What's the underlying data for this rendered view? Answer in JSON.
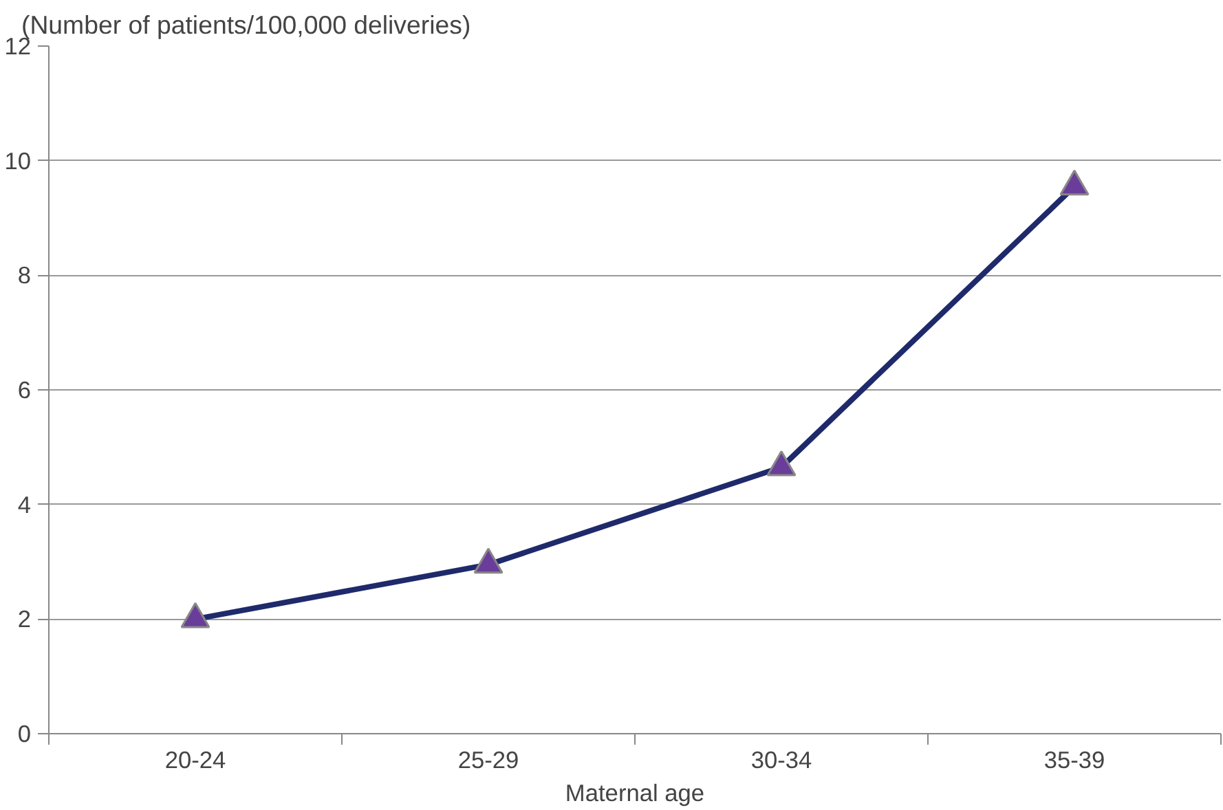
{
  "chart_data": {
    "type": "line",
    "xlabel": "Maternal age",
    "ylabel": "(Number of patients/100,000 deliveries)",
    "categories": [
      "20-24",
      "25-29",
      "30-34",
      "35-39"
    ],
    "series": [
      {
        "color": "#1f2a6b",
        "values": [
          2.0,
          2.95,
          4.65,
          9.55
        ]
      }
    ],
    "ylim": [
      0,
      12
    ],
    "yticks": [
      0,
      2,
      4,
      6,
      8,
      10,
      12
    ],
    "grid": "y",
    "marker": "triangle",
    "line_style": "solid"
  }
}
